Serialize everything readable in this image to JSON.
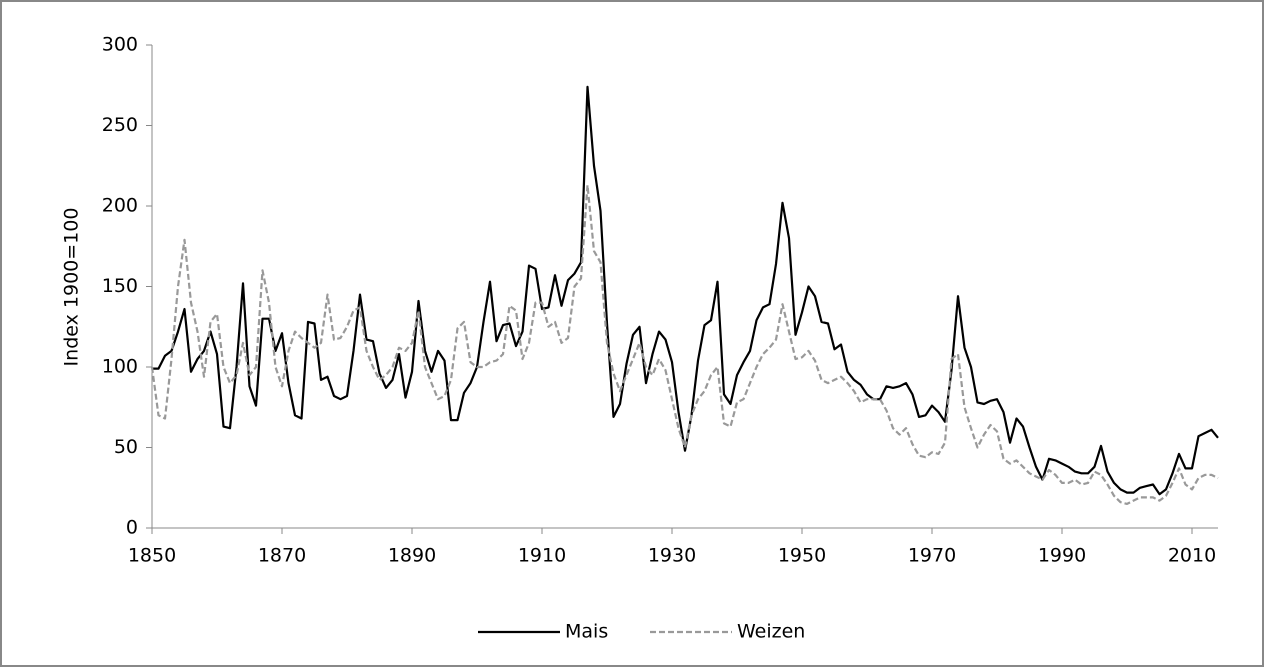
{
  "chart_data": {
    "type": "line",
    "y_label": "Index 1900=100",
    "x": [
      1850,
      1851,
      1852,
      1853,
      1854,
      1855,
      1856,
      1857,
      1858,
      1859,
      1860,
      1861,
      1862,
      1863,
      1864,
      1865,
      1866,
      1867,
      1868,
      1869,
      1870,
      1871,
      1872,
      1873,
      1874,
      1875,
      1876,
      1877,
      1878,
      1879,
      1880,
      1881,
      1882,
      1883,
      1884,
      1885,
      1886,
      1887,
      1888,
      1889,
      1890,
      1891,
      1892,
      1893,
      1894,
      1895,
      1896,
      1897,
      1898,
      1899,
      1900,
      1901,
      1902,
      1903,
      1904,
      1905,
      1906,
      1907,
      1908,
      1909,
      1910,
      1911,
      1912,
      1913,
      1914,
      1915,
      1916,
      1917,
      1918,
      1919,
      1920,
      1921,
      1922,
      1923,
      1924,
      1925,
      1926,
      1927,
      1928,
      1929,
      1930,
      1931,
      1932,
      1933,
      1934,
      1935,
      1936,
      1937,
      1938,
      1939,
      1940,
      1941,
      1942,
      1943,
      1944,
      1945,
      1946,
      1947,
      1948,
      1949,
      1950,
      1951,
      1952,
      1953,
      1954,
      1955,
      1956,
      1957,
      1958,
      1959,
      1960,
      1961,
      1962,
      1963,
      1964,
      1965,
      1966,
      1967,
      1968,
      1969,
      1970,
      1971,
      1972,
      1973,
      1974,
      1975,
      1976,
      1977,
      1978,
      1979,
      1980,
      1981,
      1982,
      1983,
      1984,
      1985,
      1986,
      1987,
      1988,
      1989,
      1990,
      1991,
      1992,
      1993,
      1994,
      1995,
      1996,
      1997,
      1998,
      1999,
      2000,
      2001,
      2002,
      2003,
      2004,
      2005,
      2006,
      2007,
      2008,
      2009,
      2010,
      2011,
      2012,
      2013,
      2014
    ],
    "series": [
      {
        "name": "Mais",
        "color": "#000000",
        "dash": false,
        "values": [
          99,
          99,
          107,
          110,
          122,
          136,
          97,
          105,
          110,
          122,
          108,
          63,
          62,
          100,
          152,
          88,
          76,
          130,
          130,
          110,
          121,
          90,
          70,
          68,
          128,
          127,
          92,
          94,
          82,
          80,
          82,
          110,
          145,
          117,
          116,
          96,
          87,
          92,
          108,
          81,
          97,
          141,
          110,
          97,
          110,
          104,
          67,
          67,
          84,
          90,
          100,
          128,
          153,
          116,
          126,
          127,
          113,
          122,
          163,
          161,
          136,
          137,
          157,
          138,
          154,
          158,
          165,
          274,
          225,
          197,
          127,
          69,
          77,
          102,
          120,
          125,
          90,
          108,
          122,
          117,
          103,
          72,
          48,
          70,
          104,
          126,
          129,
          153,
          83,
          77,
          95,
          103,
          110,
          129,
          137,
          139,
          164,
          202,
          180,
          120,
          134,
          150,
          144,
          128,
          127,
          111,
          114,
          97,
          92,
          89,
          83,
          80,
          80,
          88,
          87,
          88,
          90,
          83,
          69,
          70,
          76,
          72,
          66,
          98,
          144,
          112,
          100,
          78,
          77,
          79,
          80,
          72,
          53,
          68,
          63,
          50,
          38,
          30,
          43,
          42,
          40,
          38,
          35,
          34,
          34,
          38,
          51,
          35,
          28,
          24,
          22,
          22,
          25,
          26,
          27,
          21,
          24,
          34,
          46,
          37,
          37,
          57,
          59,
          61,
          56
        ]
      },
      {
        "name": "Weizen",
        "color": "#999999",
        "dash": true,
        "values": [
          100,
          70,
          68,
          105,
          150,
          179,
          140,
          122,
          94,
          128,
          133,
          100,
          90,
          95,
          115,
          95,
          100,
          160,
          140,
          100,
          88,
          110,
          122,
          118,
          115,
          112,
          115,
          145,
          117,
          118,
          125,
          135,
          137,
          110,
          100,
          92,
          95,
          100,
          112,
          110,
          115,
          135,
          100,
          90,
          80,
          82,
          92,
          124,
          128,
          103,
          100,
          100,
          103,
          104,
          108,
          138,
          135,
          105,
          115,
          140,
          140,
          125,
          128,
          115,
          118,
          150,
          155,
          213,
          172,
          165,
          115,
          96,
          85,
          95,
          105,
          115,
          100,
          95,
          105,
          98,
          80,
          62,
          50,
          70,
          80,
          85,
          95,
          100,
          65,
          63,
          78,
          80,
          90,
          100,
          108,
          112,
          117,
          139,
          122,
          105,
          106,
          110,
          104,
          92,
          90,
          92,
          94,
          90,
          85,
          78,
          80,
          80,
          80,
          73,
          62,
          58,
          62,
          52,
          45,
          44,
          47,
          46,
          53,
          105,
          108,
          75,
          62,
          50,
          58,
          64,
          60,
          43,
          40,
          42,
          38,
          34,
          32,
          30,
          36,
          33,
          28,
          28,
          30,
          27,
          28,
          35,
          33,
          27,
          20,
          16,
          15,
          17,
          19,
          19,
          19,
          17,
          20,
          28,
          37,
          27,
          24,
          31,
          33,
          33,
          31
        ]
      }
    ],
    "xlim": [
      1850,
      2014
    ],
    "xticks": [
      1850,
      1870,
      1890,
      1910,
      1930,
      1950,
      1970,
      1990,
      2010
    ],
    "ylim": [
      0,
      300
    ],
    "yticks": [
      0,
      50,
      100,
      150,
      200,
      250,
      300
    ],
    "legend": "bottom"
  }
}
